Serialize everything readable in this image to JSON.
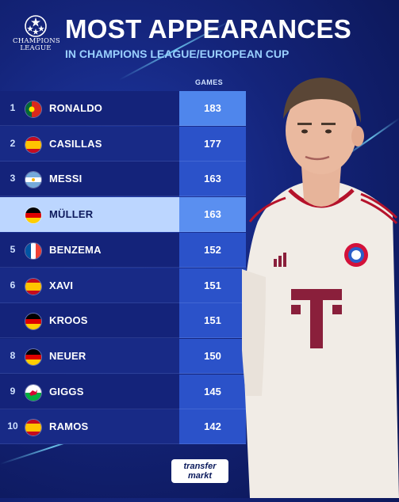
{
  "header": {
    "logo_text_1": "CHAMPIONS",
    "logo_text_2": "LEAGUE",
    "title": "MOST APPEARANCES",
    "subtitle": "IN CHAMPIONS LEAGUE/EUROPEAN CUP",
    "column_label": "GAMES"
  },
  "footer": {
    "brand_line_1": "transfer",
    "brand_line_2": "markt"
  },
  "colors": {
    "background": "#14247a",
    "highlight": "#bcd6ff",
    "value_cell": "#2b52c9",
    "top_value_cell": "#4f86ec"
  },
  "chart_data": {
    "type": "table",
    "title": "MOST APPEARANCES",
    "subtitle": "IN CHAMPIONS LEAGUE/EUROPEAN CUP",
    "columns": [
      "",
      "",
      "GAMES"
    ],
    "rows": [
      {
        "rank": "1",
        "flag": "portugal-flag",
        "name": "RONALDO",
        "value": 183
      },
      {
        "rank": "2",
        "flag": "spain-flag",
        "name": "CASILLAS",
        "value": 177
      },
      {
        "rank": "3",
        "flag": "argentina-flag",
        "name": "MESSI",
        "value": 163
      },
      {
        "rank": "",
        "flag": "germany-flag",
        "name": "MÜLLER",
        "value": 163,
        "highlighted": true
      },
      {
        "rank": "5",
        "flag": "france-flag",
        "name": "BENZEMA",
        "value": 152
      },
      {
        "rank": "6",
        "flag": "spain-flag",
        "name": "XAVI",
        "value": 151
      },
      {
        "rank": "",
        "flag": "germany-flag",
        "name": "KROOS",
        "value": 151
      },
      {
        "rank": "8",
        "flag": "germany-flag",
        "name": "NEUER",
        "value": 150
      },
      {
        "rank": "9",
        "flag": "wales-flag",
        "name": "GIGGS",
        "value": 145
      },
      {
        "rank": "10",
        "flag": "spain-flag",
        "name": "RAMOS",
        "value": 142
      }
    ]
  }
}
